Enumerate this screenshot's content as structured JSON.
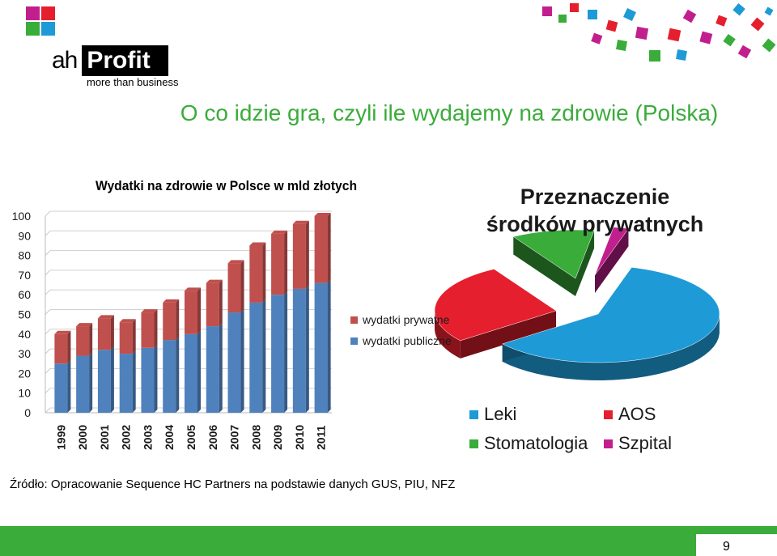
{
  "logo": {
    "ah": "ah",
    "profit": "Profit",
    "tagline": "more than business",
    "colors": [
      "#c21f8e",
      "#e51f2d",
      "#3aac3a",
      "#1e9ad6"
    ]
  },
  "slide": {
    "title": "O co idzie gra, czyli ile wydajemy na zdrowie (Polska)",
    "source": "Źródło: Opracowanie Sequence HC Partners na podstawie danych GUS, PIU, NFZ",
    "page_number": "9",
    "accent_color": "#3aac3a"
  },
  "chart_data": [
    {
      "type": "bar",
      "stacked": true,
      "title": "Wydatki na zdrowie w Polsce w mld złotych",
      "categories": [
        "1999",
        "2000",
        "2001",
        "2002",
        "2003",
        "2004",
        "2005",
        "2006",
        "2007",
        "2008",
        "2009",
        "2010",
        "2011"
      ],
      "series": [
        {
          "name": "wydatki publiczne",
          "color": "#4f81bd",
          "values": [
            25,
            29,
            32,
            30,
            33,
            37,
            40,
            44,
            51,
            56,
            60,
            63,
            66
          ]
        },
        {
          "name": "wydatki prywatne",
          "color": "#c0504d",
          "values": [
            15,
            15,
            16,
            16,
            18,
            19,
            22,
            22,
            25,
            29,
            31,
            33,
            34
          ]
        }
      ],
      "yticks": [
        "0",
        "10",
        "20",
        "30",
        "40",
        "50",
        "60",
        "70",
        "80",
        "90",
        "100"
      ],
      "ylim": [
        0,
        100
      ],
      "legend_position": "right"
    },
    {
      "type": "pie",
      "title_line1": "Przeznaczenie",
      "title_line2": "środków prywatnych",
      "slices": [
        {
          "label": "Leki",
          "value": 60,
          "color": "#1e9ad6"
        },
        {
          "label": "AOS",
          "value": 27,
          "color": "#e51f2d"
        },
        {
          "label": "Stomatologia",
          "value": 11,
          "color": "#3aac3a"
        },
        {
          "label": "Szpital",
          "value": 2,
          "color": "#c21f8e"
        }
      ],
      "legend_position": "bottom"
    }
  ]
}
